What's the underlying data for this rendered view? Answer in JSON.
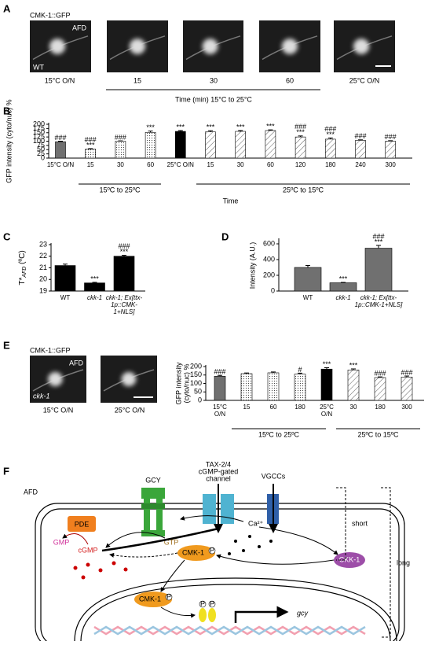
{
  "panel_letters": [
    "A",
    "B",
    "C",
    "D",
    "E",
    "F"
  ],
  "panel_a": {
    "title": "CMK-1::GFP",
    "cell": "AFD",
    "strain": "WT",
    "captions": [
      "15°C O/N",
      "15",
      "30",
      "60",
      "25°C O/N"
    ],
    "axis": "Time (min) 15°C to 25°C"
  },
  "panel_e": {
    "title": "CMK-1::GFP",
    "cell": "AFD",
    "strain": "ckk-1",
    "captions": [
      "15°C O/N",
      "25°C O/N"
    ]
  },
  "chart_data": [
    {
      "type": "bar",
      "ylabel": [
        "GFP intensity (cyto/nuc) %"
      ],
      "xlabel": "Time",
      "categories": [
        "15°C O/N",
        "15",
        "30",
        "60",
        "25°C O/N",
        "15",
        "30",
        "60",
        "120",
        "180",
        "240",
        "300"
      ],
      "values": [
        97,
        53,
        100,
        152,
        158,
        155,
        158,
        163,
        125,
        112,
        105,
        100
      ],
      "errors": [
        3,
        3,
        2,
        8,
        5,
        7,
        5,
        4,
        6,
        7,
        3,
        3
      ],
      "annotations": [
        [
          "###"
        ],
        [
          "###",
          "***"
        ],
        [
          "###"
        ],
        [
          "***"
        ],
        [
          "***"
        ],
        [
          "***"
        ],
        [
          "***"
        ],
        [
          "***"
        ],
        [
          "###",
          "***"
        ],
        [
          "###",
          "***"
        ],
        [
          "###"
        ],
        [
          "###"
        ]
      ],
      "bar_styles": [
        "gray",
        "dots",
        "dots",
        "dots",
        "black",
        "hatch",
        "hatch",
        "hatch",
        "hatch",
        "hatch",
        "hatch",
        "hatch"
      ],
      "groups": [
        "15ºC to 25ºC",
        "25ºC to 15ºC"
      ],
      "ylim": [
        0,
        200
      ],
      "yticks": [
        0,
        25,
        50,
        75,
        100,
        125,
        150,
        175,
        200
      ]
    },
    {
      "type": "bar",
      "ylabel": [
        "T*",
        "AFD",
        " (ºC)"
      ],
      "categories": [
        "WT",
        "ckk-1",
        "ckk-1; Ex[ttx-1p::CMK-1+NLS]"
      ],
      "values": [
        21.2,
        19.7,
        22.0
      ],
      "errors": [
        0.12,
        0.05,
        0.08
      ],
      "annotations": [
        [],
        [
          "***"
        ],
        [
          "###",
          "***"
        ]
      ],
      "bar_styles": [
        "black",
        "black",
        "black"
      ],
      "ylim": [
        19,
        23
      ],
      "yticks": [
        19,
        20,
        21,
        22,
        23
      ]
    },
    {
      "type": "bar",
      "ylabel": [
        "Intensity (A.U.)"
      ],
      "categories": [
        "WT",
        "ckk-1",
        "ckk-1; Ex[ttx-1p::CMK-1+NLS]"
      ],
      "values": [
        300,
        105,
        545
      ],
      "errors": [
        25,
        5,
        35
      ],
      "annotations": [
        [],
        [
          "***"
        ],
        [
          "###",
          "***"
        ]
      ],
      "bar_styles": [
        "gray",
        "gray",
        "gray"
      ],
      "ylim": [
        0,
        650
      ],
      "yticks": [
        0,
        200,
        400,
        600
      ]
    },
    {
      "type": "bar",
      "ylabel": [
        "GFP intensity",
        "(cyto/nuc) %"
      ],
      "categories": [
        "15°C O/N",
        "15",
        "60",
        "180",
        "25°C O/N",
        "30",
        "180",
        "300"
      ],
      "values": [
        143,
        158,
        163,
        155,
        185,
        180,
        135,
        138
      ],
      "errors": [
        5,
        4,
        5,
        6,
        8,
        6,
        4,
        6
      ],
      "annotations": [
        [
          "###"
        ],
        [],
        [],
        [
          "#"
        ],
        [
          "***"
        ],
        [
          "***"
        ],
        [
          "###"
        ],
        [
          "###"
        ]
      ],
      "bar_styles": [
        "gray",
        "dots",
        "dots",
        "dots",
        "black",
        "hatch",
        "hatch",
        "hatch"
      ],
      "groups": [
        "15ºC to 25ºC",
        "25ºC to 15ºC"
      ],
      "ylim": [
        0,
        200
      ],
      "yticks": [
        0,
        50,
        100,
        150,
        200
      ]
    }
  ],
  "diagram": {
    "cell": "AFD",
    "gcy_receptor": "GCY",
    "channel": [
      "TAX-2/4",
      "cGMP-gated",
      "channel"
    ],
    "vgcc": "VGCCs",
    "pde": "PDE",
    "gmp": "GMP",
    "gtp": "GTP",
    "cgmp": "cGMP",
    "calcium": "Ca²⁺",
    "cmk1": "CMK-1",
    "ckk1": "CKK-1",
    "phospho": "P",
    "gene": "gcy",
    "short": "short",
    "long": "long"
  }
}
